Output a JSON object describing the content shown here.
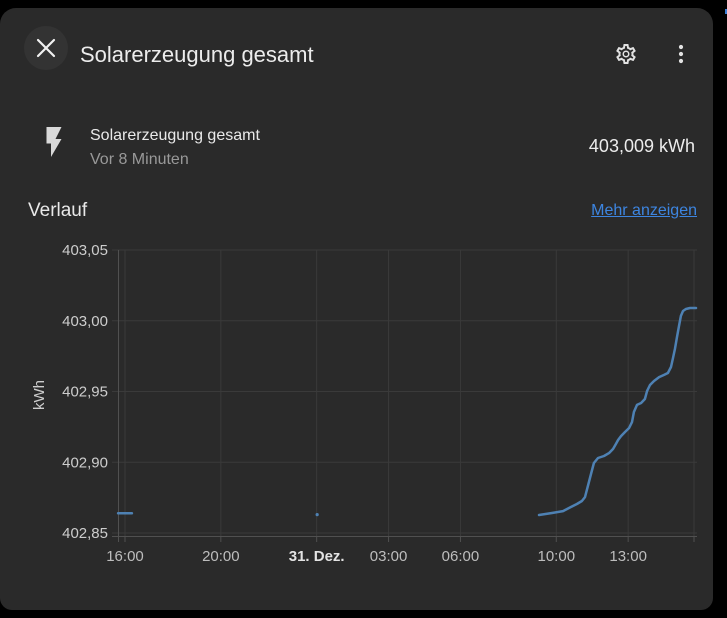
{
  "header": {
    "title": "Solarerzeugung gesamt",
    "close_icon": "close-x",
    "settings_icon": "cog-outline",
    "menu_icon": "kebab-vertical"
  },
  "entity": {
    "icon": "flash",
    "name": "Solarerzeugung gesamt",
    "last_updated": "Vor 8 Minuten",
    "state": "403,009 kWh"
  },
  "history": {
    "heading": "Verlauf",
    "more_link": "Mehr anzeigen"
  },
  "colors": {
    "background": "#000000",
    "dialog": "#2a2a2a",
    "primary_text": "#ececec",
    "secondary_text": "#999999",
    "link": "#3d85e0",
    "grid": "#3a3a3a",
    "axis": "#505050",
    "x_tick_label": "#bdbdbd",
    "x_tick_label_bold": "#e3e3e3",
    "y_tick_label": "#cdcdcd",
    "line": "#4e81b3"
  },
  "chart_data": {
    "type": "line",
    "title": "Verlauf",
    "ylabel": "kWh",
    "unit": "kWh",
    "grid": true,
    "legend": false,
    "x_axis": {
      "kind": "time",
      "hours_since_start": true,
      "start_label": "16:00",
      "range_hours": [
        -0.29,
        23.9
      ],
      "ticks": [
        {
          "t": 0,
          "label": "16:00",
          "bold": false
        },
        {
          "t": 4,
          "label": "20:00",
          "bold": false
        },
        {
          "t": 8,
          "label": "31. Dez.",
          "bold": true
        },
        {
          "t": 11,
          "label": "03:00",
          "bold": false
        },
        {
          "t": 14,
          "label": "06:00",
          "bold": false
        },
        {
          "t": 18,
          "label": "10:00",
          "bold": false
        },
        {
          "t": 21,
          "label": "13:00",
          "bold": false
        }
      ]
    },
    "y_axis": {
      "min": 402.848,
      "max": 403.05,
      "ticks": [
        {
          "v": 403.05,
          "label": "403,05"
        },
        {
          "v": 403.0,
          "label": "403,00"
        },
        {
          "v": 402.95,
          "label": "402,95"
        },
        {
          "v": 402.9,
          "label": "402,90"
        },
        {
          "v": 402.85,
          "label": "402,85"
        }
      ]
    },
    "series": [
      {
        "name": "Solarerzeugung gesamt",
        "color": "#4e81b3",
        "segments": [
          [
            [
              -0.29,
              402.864
            ],
            [
              0.29,
              402.864
            ]
          ],
          [
            [
              17.28,
              402.8627
            ],
            [
              17.82,
              402.8641
            ],
            [
              18.28,
              402.8655
            ],
            [
              18.61,
              402.8684
            ],
            [
              18.86,
              402.8705
            ],
            [
              19.07,
              402.8726
            ],
            [
              19.2,
              402.8754
            ],
            [
              19.32,
              402.8832
            ],
            [
              19.45,
              402.8917
            ],
            [
              19.57,
              402.8995
            ],
            [
              19.74,
              402.903
            ],
            [
              19.99,
              402.9044
            ],
            [
              20.2,
              402.9065
            ],
            [
              20.37,
              402.9094
            ],
            [
              20.49,
              402.9129
            ],
            [
              20.58,
              402.9157
            ],
            [
              20.7,
              402.9185
            ],
            [
              20.87,
              402.9214
            ],
            [
              21.04,
              402.9242
            ],
            [
              21.16,
              402.9284
            ],
            [
              21.24,
              402.9355
            ],
            [
              21.37,
              402.9405
            ],
            [
              21.54,
              402.9419
            ],
            [
              21.7,
              402.9447
            ],
            [
              21.79,
              402.9504
            ],
            [
              21.91,
              402.9546
            ],
            [
              22.08,
              402.9574
            ],
            [
              22.29,
              402.9602
            ],
            [
              22.5,
              402.9617
            ],
            [
              22.66,
              402.9631
            ],
            [
              22.79,
              402.9673
            ],
            [
              22.87,
              402.9737
            ],
            [
              22.95,
              402.98
            ],
            [
              23.04,
              402.9885
            ],
            [
              23.12,
              402.9963
            ],
            [
              23.2,
              403.0034
            ],
            [
              23.29,
              403.0069
            ],
            [
              23.41,
              403.0083
            ],
            [
              23.58,
              403.009
            ],
            [
              23.83,
              403.009
            ]
          ]
        ],
        "isolated_points": [
          [
            8.02,
            402.863
          ]
        ],
        "final_value": 403.009
      }
    ]
  }
}
